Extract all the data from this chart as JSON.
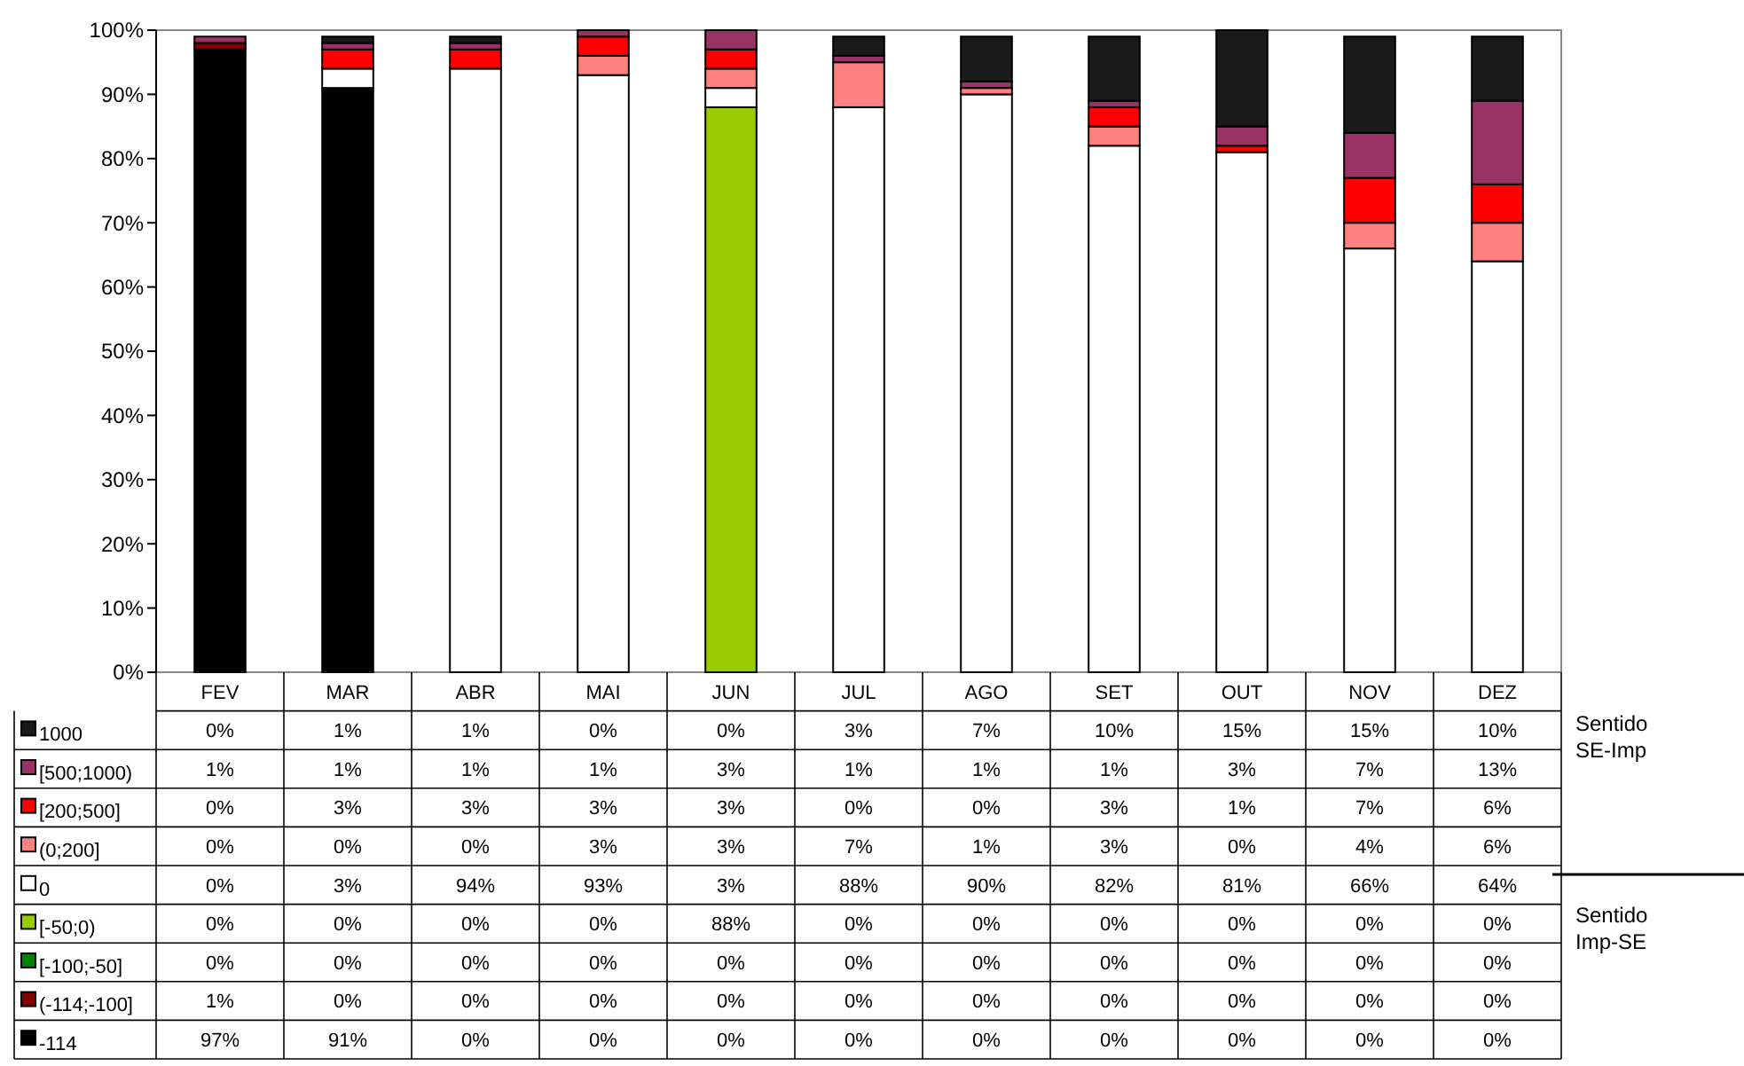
{
  "chart_data": {
    "type": "bar",
    "stacked": true,
    "categories": [
      "FEV",
      "MAR",
      "ABR",
      "MAI",
      "JUN",
      "JUL",
      "AGO",
      "SET",
      "OUT",
      "NOV",
      "DEZ"
    ],
    "ylim": [
      0,
      100
    ],
    "yticks": [
      {
        "value": 0,
        "label": "0%"
      },
      {
        "value": 10,
        "label": "10%"
      },
      {
        "value": 20,
        "label": "20%"
      },
      {
        "value": 30,
        "label": "30%"
      },
      {
        "value": 40,
        "label": "40%"
      },
      {
        "value": 50,
        "label": "50%"
      },
      {
        "value": 60,
        "label": "60%"
      },
      {
        "value": 70,
        "label": "70%"
      },
      {
        "value": 80,
        "label": "80%"
      },
      {
        "value": 90,
        "label": "90%"
      },
      {
        "value": 100,
        "label": "100%"
      }
    ],
    "grid": false,
    "legend": "bottom",
    "series": [
      {
        "name": "-114",
        "color": "#000000",
        "values": [
          97,
          91,
          0,
          0,
          0,
          0,
          0,
          0,
          0,
          0,
          0
        ],
        "value_labels": [
          "97%",
          "91%",
          "0%",
          "0%",
          "0%",
          "0%",
          "0%",
          "0%",
          "0%",
          "0%",
          "0%"
        ]
      },
      {
        "name": "(-114;-100]",
        "color": "#800000",
        "values": [
          1,
          0,
          0,
          0,
          0,
          0,
          0,
          0,
          0,
          0,
          0
        ],
        "value_labels": [
          "1%",
          "0%",
          "0%",
          "0%",
          "0%",
          "0%",
          "0%",
          "0%",
          "0%",
          "0%",
          "0%"
        ]
      },
      {
        "name": "[-100;-50]",
        "color": "#008000",
        "values": [
          0,
          0,
          0,
          0,
          0,
          0,
          0,
          0,
          0,
          0,
          0
        ],
        "value_labels": [
          "0%",
          "0%",
          "0%",
          "0%",
          "0%",
          "0%",
          "0%",
          "0%",
          "0%",
          "0%",
          "0%"
        ]
      },
      {
        "name": "[-50;0)",
        "color": "#99cc00",
        "values": [
          0,
          0,
          0,
          0,
          88,
          0,
          0,
          0,
          0,
          0,
          0
        ],
        "value_labels": [
          "0%",
          "0%",
          "0%",
          "0%",
          "88%",
          "0%",
          "0%",
          "0%",
          "0%",
          "0%",
          "0%"
        ]
      },
      {
        "name": "0",
        "color": "#ffffff",
        "values": [
          0,
          3,
          94,
          93,
          3,
          88,
          90,
          82,
          81,
          66,
          64
        ],
        "value_labels": [
          "0%",
          "3%",
          "94%",
          "93%",
          "3%",
          "88%",
          "90%",
          "82%",
          "81%",
          "66%",
          "64%"
        ]
      },
      {
        "name": "(0;200]",
        "color": "#ff8080",
        "values": [
          0,
          0,
          0,
          3,
          3,
          7,
          1,
          3,
          0,
          4,
          6
        ],
        "value_labels": [
          "0%",
          "0%",
          "0%",
          "3%",
          "3%",
          "7%",
          "1%",
          "3%",
          "0%",
          "4%",
          "6%"
        ]
      },
      {
        "name": "[200;500]",
        "color": "#ff0000",
        "values": [
          0,
          3,
          3,
          3,
          3,
          0,
          0,
          3,
          1,
          7,
          6
        ],
        "value_labels": [
          "0%",
          "3%",
          "3%",
          "3%",
          "3%",
          "0%",
          "0%",
          "3%",
          "1%",
          "7%",
          "6%"
        ]
      },
      {
        "name": "[500;1000)",
        "color": "#993366",
        "values": [
          1,
          1,
          1,
          1,
          3,
          1,
          1,
          1,
          3,
          7,
          13
        ],
        "value_labels": [
          "1%",
          "1%",
          "1%",
          "1%",
          "3%",
          "1%",
          "1%",
          "1%",
          "3%",
          "7%",
          "13%"
        ]
      },
      {
        "name": "1000",
        "color": "#1a1a1a",
        "values": [
          0,
          1,
          1,
          0,
          0,
          3,
          7,
          10,
          15,
          15,
          10
        ],
        "value_labels": [
          "0%",
          "1%",
          "1%",
          "0%",
          "0%",
          "3%",
          "7%",
          "10%",
          "15%",
          "15%",
          "10%"
        ]
      }
    ],
    "annotations": [
      "Sentido SE-Imp",
      "Sentido Imp-SE"
    ]
  }
}
